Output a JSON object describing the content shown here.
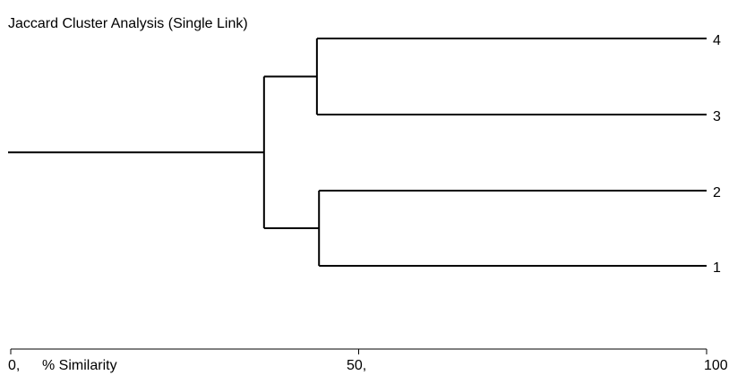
{
  "chart_data": {
    "type": "dendrogram",
    "title": "Jaccard Cluster Analysis (Single Link)",
    "xlabel": "% Similarity",
    "xlim": [
      0,
      100
    ],
    "x_tick_labels": [
      "0,",
      "50,",
      "100"
    ],
    "x_ticks": [
      0,
      50,
      100
    ],
    "leaves": [
      "4",
      "3",
      "2",
      "1"
    ],
    "merges": [
      {
        "members": [
          "4",
          "3"
        ],
        "similarity": 44
      },
      {
        "members": [
          "2",
          "1"
        ],
        "similarity": 44.3
      },
      {
        "members": [
          "4",
          "3",
          "2",
          "1"
        ],
        "similarity": 36.4
      }
    ],
    "colors": {
      "line": "#000000",
      "background": "#ffffff"
    }
  }
}
